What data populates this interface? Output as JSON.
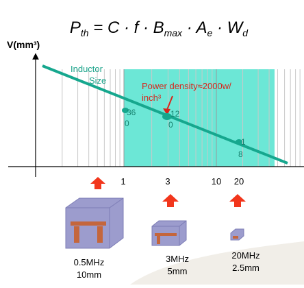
{
  "formula": [
    {
      "main": "P",
      "sub": "th"
    },
    {
      "main": " = C · f · B",
      "sub": "max"
    },
    {
      "main": " · A",
      "sub": "e"
    },
    {
      "main": " · W",
      "sub": "d"
    }
  ],
  "y_axis_label": "V(mm³)",
  "curve_label": [
    "Inductor",
    "Size"
  ],
  "annotation": [
    "Power density≈2000w/",
    "inch³"
  ],
  "points": [
    [
      "36",
      "0"
    ],
    [
      "12",
      "0"
    ],
    [
      "1",
      "8"
    ]
  ],
  "x_ticks": [
    "1",
    "3",
    "10",
    "20"
  ],
  "components": [
    {
      "freq": "0.5MHz",
      "size": "10mm"
    },
    {
      "freq": "3MHz",
      "size": "5mm"
    },
    {
      "freq": "20MHz",
      "size": "2.5mm"
    }
  ]
}
